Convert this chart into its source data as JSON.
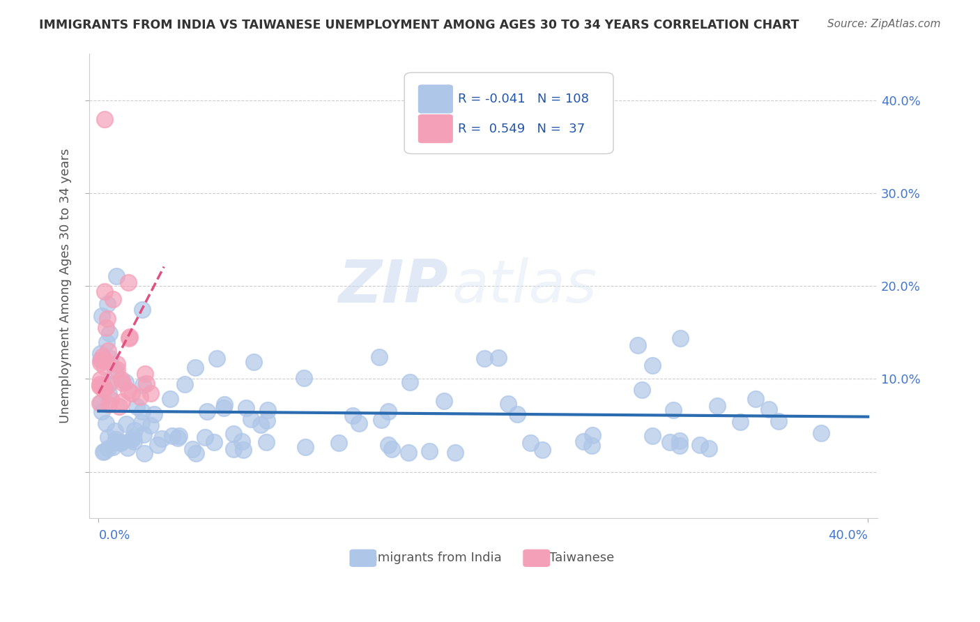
{
  "title": "IMMIGRANTS FROM INDIA VS TAIWANESE UNEMPLOYMENT AMONG AGES 30 TO 34 YEARS CORRELATION CHART",
  "source": "Source: ZipAtlas.com",
  "ylabel": "Unemployment Among Ages 30 to 34 years",
  "ytick_vals": [
    0.0,
    0.1,
    0.2,
    0.3,
    0.4
  ],
  "ytick_labels": [
    "",
    "10.0%",
    "20.0%",
    "30.0%",
    "40.0%"
  ],
  "xlim": [
    -0.005,
    0.405
  ],
  "ylim": [
    -0.05,
    0.45
  ],
  "watermark_zip": "ZIP",
  "watermark_atlas": "atlas",
  "india_R": -0.041,
  "india_N": 108,
  "taiwan_R": 0.549,
  "taiwan_N": 37,
  "india_line_color": "#2b6cb0",
  "taiwan_line_color": "#e05080",
  "scatter_india_color": "#aec6e8",
  "scatter_taiwan_color": "#f4a0b8",
  "grid_color": "#cccccc",
  "background_color": "#ffffff",
  "title_color": "#333333",
  "tick_label_color": "#4477cc",
  "legend_text_color": "#2255aa"
}
